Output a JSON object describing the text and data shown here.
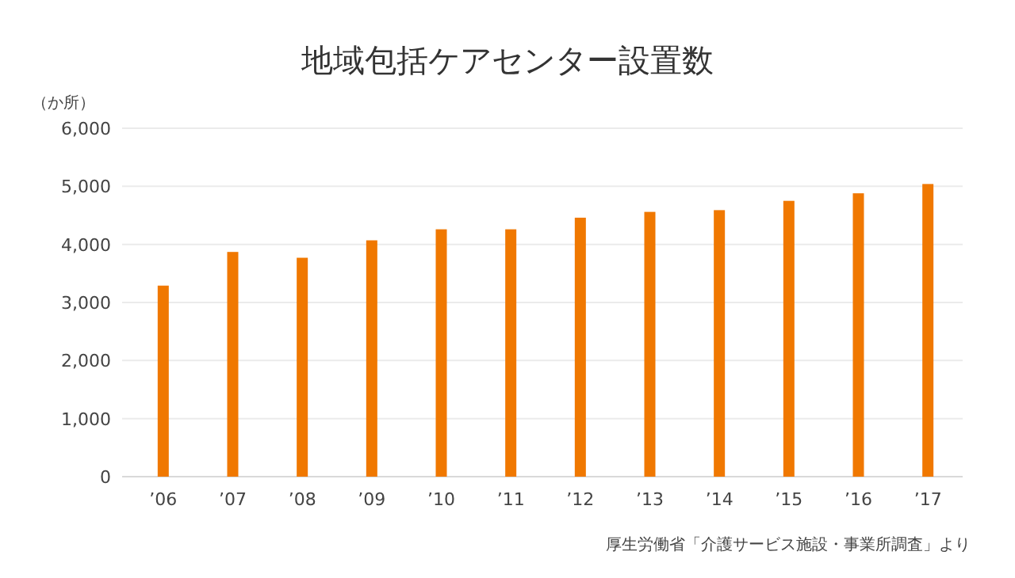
{
  "chart_data": {
    "type": "bar",
    "title": "地域包括ケアセンター設置数",
    "ylabel": "（か所）",
    "categories": [
      "’06",
      "’07",
      "’08",
      "’09",
      "’10",
      "’11",
      "’12",
      "’13",
      "’14",
      "’15",
      "’16",
      "’17"
    ],
    "values": [
      3290,
      3870,
      3770,
      4070,
      4260,
      4260,
      4460,
      4560,
      4590,
      4750,
      4880,
      5040
    ],
    "color": "#f07800",
    "ylim": [
      0,
      6000
    ],
    "yticks": [
      {
        "value": 0,
        "label": "0"
      },
      {
        "value": 1000,
        "label": "1,000"
      },
      {
        "value": 2000,
        "label": "2,000"
      },
      {
        "value": 3000,
        "label": "3,000"
      },
      {
        "value": 4000,
        "label": "4,000"
      },
      {
        "value": 5000,
        "label": "5,000"
      },
      {
        "value": 6000,
        "label": "6,000"
      }
    ],
    "grid": "y",
    "annotations": [
      "厚生労働省「介護サービス施設・事業所調査」より"
    ]
  }
}
